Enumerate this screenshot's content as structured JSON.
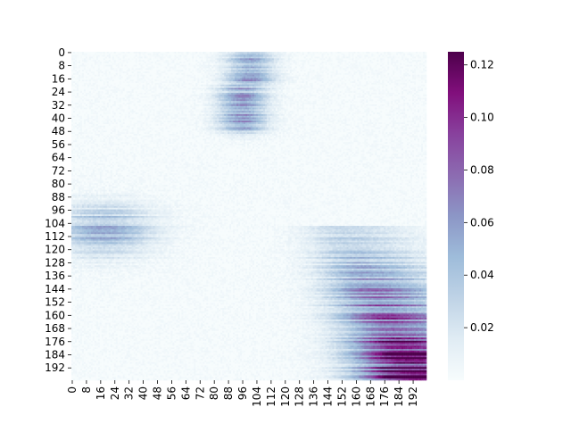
{
  "chart_data": {
    "type": "heatmap",
    "title": "",
    "xlabel": "",
    "ylabel": "",
    "x_range": [
      0,
      199
    ],
    "y_range": [
      0,
      199
    ],
    "x_ticks": [
      0,
      8,
      16,
      24,
      32,
      40,
      48,
      56,
      64,
      72,
      80,
      88,
      96,
      104,
      112,
      120,
      128,
      136,
      144,
      152,
      160,
      168,
      176,
      184,
      192
    ],
    "y_ticks": [
      0,
      8,
      16,
      24,
      32,
      40,
      48,
      56,
      64,
      72,
      80,
      88,
      96,
      104,
      112,
      120,
      128,
      136,
      144,
      152,
      160,
      168,
      176,
      184,
      192
    ],
    "x_tick_labels": [
      "0",
      "8",
      "16",
      "24",
      "32",
      "40",
      "48",
      "56",
      "64",
      "72",
      "80",
      "88",
      "96",
      "104",
      "112",
      "120",
      "128",
      "136",
      "144",
      "152",
      "160",
      "168",
      "176",
      "184",
      "192"
    ],
    "y_tick_labels": [
      "0",
      "8",
      "16",
      "24",
      "32",
      "40",
      "48",
      "56",
      "64",
      "72",
      "80",
      "88",
      "96",
      "104",
      "112",
      "120",
      "128",
      "136",
      "144",
      "152",
      "160",
      "168",
      "176",
      "184",
      "192"
    ],
    "colorbar": {
      "range": [
        0.0,
        0.125
      ],
      "ticks": [
        0.02,
        0.04,
        0.06,
        0.08,
        0.1,
        0.12
      ],
      "tick_labels": [
        "0.02",
        "0.04",
        "0.06",
        "0.08",
        "0.10",
        "0.12"
      ],
      "colormap": "BuPu",
      "stops": [
        "#f7fcfd",
        "#e0ecf4",
        "#bfd3e6",
        "#9ebcda",
        "#8c96c6",
        "#8c6bb1",
        "#88419d",
        "#810f7c",
        "#4d004b"
      ]
    },
    "bands": [
      {
        "row_start": 0,
        "row_end": 44,
        "col_start": 70,
        "col_end": 130,
        "peak_value": 0.055,
        "description": "upper band"
      },
      {
        "row_start": 84,
        "row_end": 132,
        "col_start": 0,
        "col_end": 65,
        "peak_value": 0.045,
        "description": "left band"
      },
      {
        "row_start": 112,
        "row_end": 199,
        "col_start": 118,
        "col_end": 199,
        "peak_value": 0.125,
        "description": "lower-right band"
      }
    ]
  }
}
